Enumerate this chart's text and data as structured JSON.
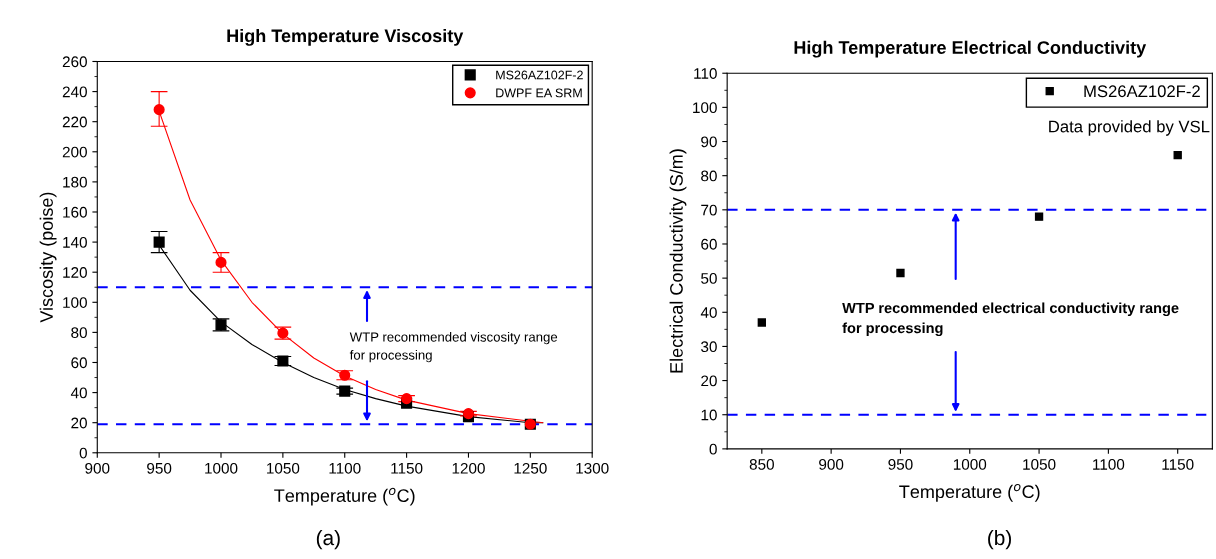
{
  "chart_data": [
    {
      "type": "scatter",
      "title": "High Temperature Viscosity",
      "xlabel": "Temperature ($^{o}$C)",
      "ylabel": "Viscosity (poise)",
      "x": [
        950,
        1000,
        1050,
        1100,
        1150,
        1200,
        1250
      ],
      "series": [
        {
          "name": "MS26AZ102F-2",
          "color": "#000000",
          "marker": "square",
          "values": [
            140,
            85,
            61,
            41,
            33,
            24,
            19
          ],
          "errors": [
            7,
            4,
            3,
            2,
            null,
            null,
            null
          ]
        },
        {
          "name": "DWPF EA SRM",
          "color": "#ff0000",
          "marker": "circle",
          "values": [
            228,
            126.5,
            79.5,
            51.5,
            36,
            26,
            19
          ],
          "errors": [
            [
              217,
              240
            ],
            [
              120,
              133
            ],
            4,
            3,
            2,
            1.5,
            null
          ]
        },
        {
          "type": "line",
          "color": "#000000",
          "x": [
            950,
            975,
            1000,
            1025,
            1050,
            1075,
            1100,
            1125,
            1150,
            1200,
            1250,
            1260
          ],
          "values": [
            138,
            108,
            87,
            72,
            60,
            50,
            42,
            36,
            31,
            24,
            20,
            20
          ]
        },
        {
          "type": "line",
          "color": "#ff0000",
          "x": [
            950,
            975,
            1000,
            1025,
            1050,
            1075,
            1100,
            1125,
            1150,
            1200,
            1250,
            1260
          ],
          "values": [
            227,
            168,
            128,
            100,
            79,
            63,
            51,
            42,
            35,
            26,
            21,
            20
          ]
        }
      ],
      "xlim": [
        900,
        1300
      ],
      "xticks": [
        900,
        950,
        1000,
        1050,
        1100,
        1150,
        1200,
        1250,
        1300
      ],
      "ylim": [
        0,
        260
      ],
      "yticks": [
        0,
        20,
        40,
        60,
        80,
        100,
        120,
        140,
        160,
        180,
        200,
        220,
        240,
        260
      ],
      "ref_lines": [
        {
          "axis": "y",
          "value": 110,
          "color": "#0000ff",
          "line_style": "dashed"
        },
        {
          "axis": "y",
          "value": 19,
          "color": "#0000ff",
          "line_style": "dashed"
        }
      ],
      "annotations": [
        "WTP recommended viscosity range\nfor processing",
        "(a)"
      ],
      "legend": "top right",
      "grid": false
    },
    {
      "type": "scatter",
      "title": "High Temperature Electrical Conductivity",
      "xlabel": "Temperature ($^{o}$C)",
      "ylabel": "Electrical Conductivity (S/m)",
      "x": [
        850,
        950,
        1050,
        1150
      ],
      "series": [
        {
          "name": "MS26AZ102F-2",
          "color": "#000000",
          "marker": "square",
          "values": [
            37,
            51.5,
            68,
            86
          ]
        }
      ],
      "xlim": [
        825,
        1175
      ],
      "xticks": [
        850,
        900,
        950,
        1000,
        1050,
        1100,
        1150
      ],
      "ylim": [
        0,
        110
      ],
      "yticks": [
        0,
        10,
        20,
        30,
        40,
        50,
        60,
        70,
        80,
        90,
        100,
        110
      ],
      "ref_lines": [
        {
          "axis": "y",
          "value": 70,
          "color": "#0000ff",
          "line_style": "dashed"
        },
        {
          "axis": "y",
          "value": 10,
          "color": "#0000ff",
          "line_style": "dashed"
        }
      ],
      "annotations": [
        "Data provided by VSL",
        "WTP recommended electrical conductivity range\nfor processing",
        "(b)"
      ],
      "legend": "top right",
      "grid": false
    }
  ]
}
